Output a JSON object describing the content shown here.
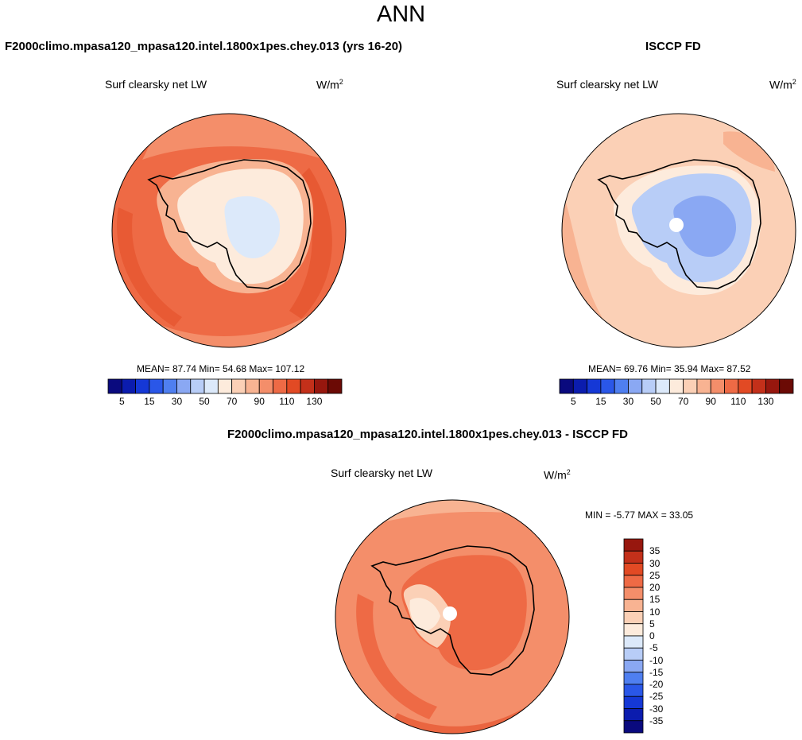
{
  "page_title": "ANN",
  "colors": {
    "abs_palette": [
      "#0a0a7e",
      "#0b1cae",
      "#1538d6",
      "#2a57e8",
      "#4f7ff0",
      "#8aa8f3",
      "#b8cdf7",
      "#dce9fa",
      "#fdebdc",
      "#fbd0b6",
      "#f8b392",
      "#f48e6a",
      "#ee6a45",
      "#e24a24",
      "#c3301a",
      "#97170e",
      "#6b0a05"
    ],
    "diff_palette": [
      "#0a0a7e",
      "#0b1cae",
      "#1538d6",
      "#2a57e8",
      "#4f7ff0",
      "#8aa8f3",
      "#b8cdf7",
      "#dce9fa",
      "#fdebdc",
      "#fbd0b6",
      "#f8b392",
      "#f48e6a",
      "#ee6a45",
      "#e24a24",
      "#c3301a",
      "#97170e"
    ]
  },
  "chart_data": [
    {
      "type": "heatmap",
      "title": "F2000climo.mpasa120_mpasa120.intel.1800x1pes.chey.013 (yrs 16-20)",
      "variable": "Surf clearsky net LW",
      "units_base": "W/m",
      "units_exp": "2",
      "projection": "south polar stereographic",
      "stats_text": "MEAN=  87.74   Min=  54.68   Max= 107.12",
      "mean": 87.74,
      "min": 54.68,
      "max": 107.12,
      "colorbar": {
        "levels": [
          5,
          10,
          15,
          20,
          30,
          40,
          50,
          60,
          70,
          80,
          90,
          100,
          110,
          120,
          130,
          140
        ],
        "tick_labels": [
          "5",
          "15",
          "30",
          "50",
          "70",
          "90",
          "110",
          "130"
        ]
      }
    },
    {
      "type": "heatmap",
      "title": "ISCCP FD",
      "variable": "Surf clearsky net LW",
      "units_base": "W/m",
      "units_exp": "2",
      "projection": "south polar stereographic",
      "stats_text": "MEAN=  69.76   Min=  35.94   Max=  87.52",
      "mean": 69.76,
      "min": 35.94,
      "max": 87.52,
      "colorbar": {
        "levels": [
          5,
          10,
          15,
          20,
          30,
          40,
          50,
          60,
          70,
          80,
          90,
          100,
          110,
          120,
          130,
          140
        ],
        "tick_labels": [
          "5",
          "15",
          "30",
          "50",
          "70",
          "90",
          "110",
          "130"
        ]
      }
    },
    {
      "type": "heatmap",
      "title": "F2000climo.mpasa120_mpasa120.intel.1800x1pes.chey.013 - ISCCP FD",
      "variable": "Surf clearsky net LW",
      "units_base": "W/m",
      "units_exp": "2",
      "projection": "south polar stereographic",
      "stats_text": "MIN =  -5.77 MAX =  33.05",
      "min": -5.77,
      "max": 33.05,
      "colorbar": {
        "levels": [
          -35,
          -30,
          -25,
          -20,
          -15,
          -10,
          -5,
          0,
          5,
          10,
          15,
          20,
          25,
          30,
          35
        ],
        "tick_labels": [
          "35",
          "30",
          "25",
          "20",
          "15",
          "10",
          "5",
          "0",
          "-5",
          "-10",
          "-15",
          "-20",
          "-25",
          "-30",
          "-35"
        ]
      }
    }
  ]
}
